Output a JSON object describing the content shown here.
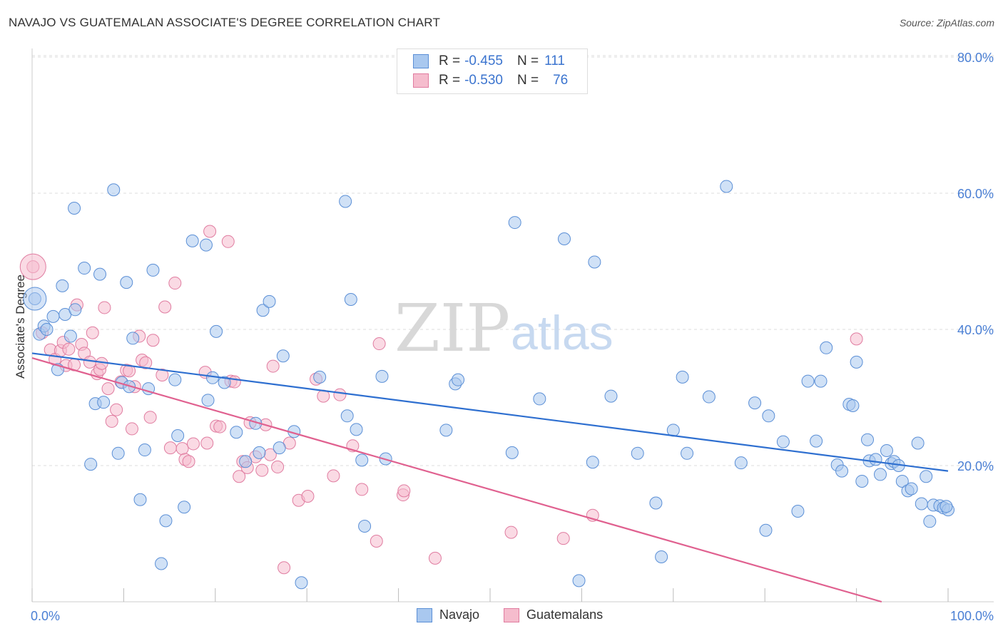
{
  "header": {
    "title": "NAVAJO VS GUATEMALAN ASSOCIATE'S DEGREE CORRELATION CHART",
    "source": "Source: ZipAtlas.com"
  },
  "watermark": {
    "zip": "ZIP",
    "atlas": "atlas"
  },
  "legend_top": [
    {
      "r_label": "R = ",
      "r_value": "-0.455",
      "n_label": "N = ",
      "n_value": "111"
    },
    {
      "r_label": "R = ",
      "r_value": "-0.530",
      "n_label": "N = ",
      "n_value": "76"
    }
  ],
  "legend_bottom": [
    {
      "label": "Navajo"
    },
    {
      "label": "Guatemalans"
    }
  ],
  "colors": {
    "navajo_fill": "#a9c8ef",
    "navajo_stroke": "#5b8fd6",
    "navajo_line": "#2e6fd0",
    "guatemalan_fill": "#f5bccd",
    "guatemalan_stroke": "#e07ca0",
    "guatemalan_line": "#e0608f",
    "axis_text": "#4a7fd4",
    "grid": "#dddddd"
  },
  "chart_data": {
    "type": "scatter",
    "title": "NAVAJO VS GUATEMALAN ASSOCIATE'S DEGREE CORRELATION CHART",
    "xlabel": "",
    "ylabel": "Associate's Degree",
    "xlim": [
      0,
      100
    ],
    "ylim": [
      0,
      80
    ],
    "x_tick_labels": [
      "0.0%",
      "100.0%"
    ],
    "y_ticks": [
      20,
      40,
      60,
      80
    ],
    "y_tick_labels": [
      "20.0%",
      "40.0%",
      "60.0%",
      "80.0%"
    ],
    "grid": true,
    "legend_position": "top-center",
    "series": [
      {
        "name": "Navajo",
        "r": -0.455,
        "n": 111,
        "trend": {
          "x": [
            0,
            100
          ],
          "y": [
            36.5,
            19.2
          ]
        },
        "points": [
          [
            0.3,
            44.5
          ],
          [
            0.8,
            39.3
          ],
          [
            1.3,
            40.5
          ],
          [
            1.6,
            40.0
          ],
          [
            2.3,
            41.9
          ],
          [
            2.8,
            34.1
          ],
          [
            3.3,
            46.4
          ],
          [
            3.6,
            42.2
          ],
          [
            4.2,
            39.0
          ],
          [
            4.7,
            42.9
          ],
          [
            4.6,
            57.8
          ],
          [
            5.7,
            49.0
          ],
          [
            6.4,
            20.2
          ],
          [
            6.9,
            29.1
          ],
          [
            7.4,
            48.1
          ],
          [
            7.8,
            29.3
          ],
          [
            8.9,
            60.5
          ],
          [
            9.4,
            21.8
          ],
          [
            9.8,
            32.2
          ],
          [
            10.3,
            46.9
          ],
          [
            10.6,
            31.6
          ],
          [
            11.0,
            38.7
          ],
          [
            11.8,
            15.0
          ],
          [
            12.3,
            22.3
          ],
          [
            12.7,
            31.3
          ],
          [
            13.2,
            48.7
          ],
          [
            14.1,
            5.6
          ],
          [
            14.6,
            11.9
          ],
          [
            15.6,
            32.6
          ],
          [
            15.9,
            24.4
          ],
          [
            16.6,
            13.9
          ],
          [
            17.5,
            53.0
          ],
          [
            19.0,
            52.4
          ],
          [
            19.2,
            29.6
          ],
          [
            19.7,
            32.9
          ],
          [
            20.1,
            39.7
          ],
          [
            21.0,
            32.2
          ],
          [
            22.3,
            24.9
          ],
          [
            23.3,
            20.6
          ],
          [
            24.4,
            26.2
          ],
          [
            24.8,
            21.9
          ],
          [
            25.2,
            42.8
          ],
          [
            25.9,
            44.1
          ],
          [
            27.0,
            22.6
          ],
          [
            27.4,
            36.1
          ],
          [
            28.6,
            25.0
          ],
          [
            29.4,
            2.8
          ],
          [
            31.4,
            33.0
          ],
          [
            34.2,
            58.8
          ],
          [
            34.4,
            27.3
          ],
          [
            34.8,
            44.4
          ],
          [
            35.4,
            25.3
          ],
          [
            36.0,
            20.8
          ],
          [
            36.3,
            11.1
          ],
          [
            38.2,
            33.1
          ],
          [
            38.6,
            21.0
          ],
          [
            45.2,
            25.2
          ],
          [
            46.2,
            32.0
          ],
          [
            46.5,
            32.6
          ],
          [
            52.4,
            21.9
          ],
          [
            52.7,
            55.7
          ],
          [
            55.4,
            29.8
          ],
          [
            58.1,
            53.3
          ],
          [
            59.7,
            3.1
          ],
          [
            61.2,
            20.5
          ],
          [
            61.4,
            49.9
          ],
          [
            63.2,
            30.2
          ],
          [
            66.1,
            21.8
          ],
          [
            68.1,
            14.5
          ],
          [
            68.7,
            6.6
          ],
          [
            70.0,
            25.2
          ],
          [
            71.0,
            33.0
          ],
          [
            71.5,
            21.8
          ],
          [
            73.9,
            30.1
          ],
          [
            75.8,
            61.0
          ],
          [
            77.4,
            20.4
          ],
          [
            78.9,
            29.2
          ],
          [
            80.1,
            10.5
          ],
          [
            80.4,
            27.3
          ],
          [
            82.0,
            23.5
          ],
          [
            83.6,
            13.3
          ],
          [
            84.7,
            32.4
          ],
          [
            85.6,
            23.6
          ],
          [
            86.1,
            32.4
          ],
          [
            86.7,
            37.3
          ],
          [
            87.9,
            20.1
          ],
          [
            88.4,
            19.2
          ],
          [
            89.2,
            29.0
          ],
          [
            89.6,
            28.8
          ],
          [
            90.0,
            35.2
          ],
          [
            90.6,
            17.7
          ],
          [
            91.2,
            23.8
          ],
          [
            91.4,
            20.7
          ],
          [
            92.1,
            20.9
          ],
          [
            92.6,
            18.7
          ],
          [
            93.3,
            22.2
          ],
          [
            93.8,
            20.3
          ],
          [
            94.1,
            20.6
          ],
          [
            94.6,
            20.0
          ],
          [
            95.0,
            17.7
          ],
          [
            95.6,
            16.3
          ],
          [
            96.0,
            16.6
          ],
          [
            96.7,
            23.3
          ],
          [
            97.1,
            14.4
          ],
          [
            97.6,
            18.4
          ],
          [
            98.0,
            11.8
          ],
          [
            98.4,
            14.2
          ],
          [
            99.1,
            14.1
          ],
          [
            99.5,
            13.8
          ],
          [
            100.0,
            13.5
          ],
          [
            99.8,
            14.0
          ]
        ]
      },
      {
        "name": "Guatemalans",
        "r": -0.53,
        "n": 76,
        "trend": {
          "x": [
            0,
            100
          ],
          "y": [
            35.8,
            -2.8
          ]
        },
        "points": [
          [
            0.1,
            49.2
          ],
          [
            1.1,
            39.5
          ],
          [
            2.0,
            37.0
          ],
          [
            2.5,
            35.6
          ],
          [
            3.1,
            36.9
          ],
          [
            3.4,
            38.1
          ],
          [
            3.7,
            34.7
          ],
          [
            4.0,
            37.1
          ],
          [
            4.6,
            34.8
          ],
          [
            4.9,
            43.6
          ],
          [
            5.4,
            37.8
          ],
          [
            5.7,
            36.5
          ],
          [
            6.3,
            35.2
          ],
          [
            6.6,
            39.5
          ],
          [
            7.1,
            33.5
          ],
          [
            7.4,
            34.1
          ],
          [
            7.6,
            35.0
          ],
          [
            7.9,
            43.2
          ],
          [
            8.3,
            31.3
          ],
          [
            8.7,
            26.5
          ],
          [
            9.2,
            28.2
          ],
          [
            9.7,
            32.3
          ],
          [
            10.3,
            34.0
          ],
          [
            10.6,
            33.9
          ],
          [
            10.9,
            25.4
          ],
          [
            11.2,
            31.6
          ],
          [
            11.7,
            39.0
          ],
          [
            12.0,
            35.5
          ],
          [
            12.4,
            35.1
          ],
          [
            12.9,
            27.1
          ],
          [
            13.2,
            38.4
          ],
          [
            14.2,
            33.3
          ],
          [
            14.5,
            43.3
          ],
          [
            15.1,
            22.6
          ],
          [
            15.6,
            46.8
          ],
          [
            16.4,
            22.5
          ],
          [
            16.7,
            20.9
          ],
          [
            17.1,
            20.6
          ],
          [
            17.6,
            23.2
          ],
          [
            18.9,
            33.7
          ],
          [
            19.1,
            23.3
          ],
          [
            19.4,
            54.4
          ],
          [
            20.1,
            25.8
          ],
          [
            20.5,
            25.7
          ],
          [
            21.4,
            52.9
          ],
          [
            21.7,
            32.4
          ],
          [
            22.1,
            32.3
          ],
          [
            22.6,
            18.4
          ],
          [
            23.0,
            20.6
          ],
          [
            23.5,
            19.7
          ],
          [
            23.8,
            26.3
          ],
          [
            24.4,
            21.3
          ],
          [
            25.1,
            19.3
          ],
          [
            25.5,
            26.0
          ],
          [
            26.0,
            21.6
          ],
          [
            26.3,
            34.6
          ],
          [
            26.8,
            19.8
          ],
          [
            27.5,
            5.0
          ],
          [
            28.1,
            23.3
          ],
          [
            29.1,
            14.9
          ],
          [
            30.1,
            15.5
          ],
          [
            31.0,
            32.7
          ],
          [
            31.8,
            30.2
          ],
          [
            32.9,
            18.5
          ],
          [
            33.6,
            30.4
          ],
          [
            35.0,
            22.9
          ],
          [
            36.0,
            16.5
          ],
          [
            37.6,
            8.9
          ],
          [
            37.9,
            37.9
          ],
          [
            40.5,
            15.7
          ],
          [
            40.6,
            16.3
          ],
          [
            44.0,
            6.4
          ],
          [
            52.3,
            10.2
          ],
          [
            58.0,
            9.3
          ],
          [
            61.2,
            12.7
          ],
          [
            90.0,
            38.6
          ]
        ]
      }
    ]
  }
}
